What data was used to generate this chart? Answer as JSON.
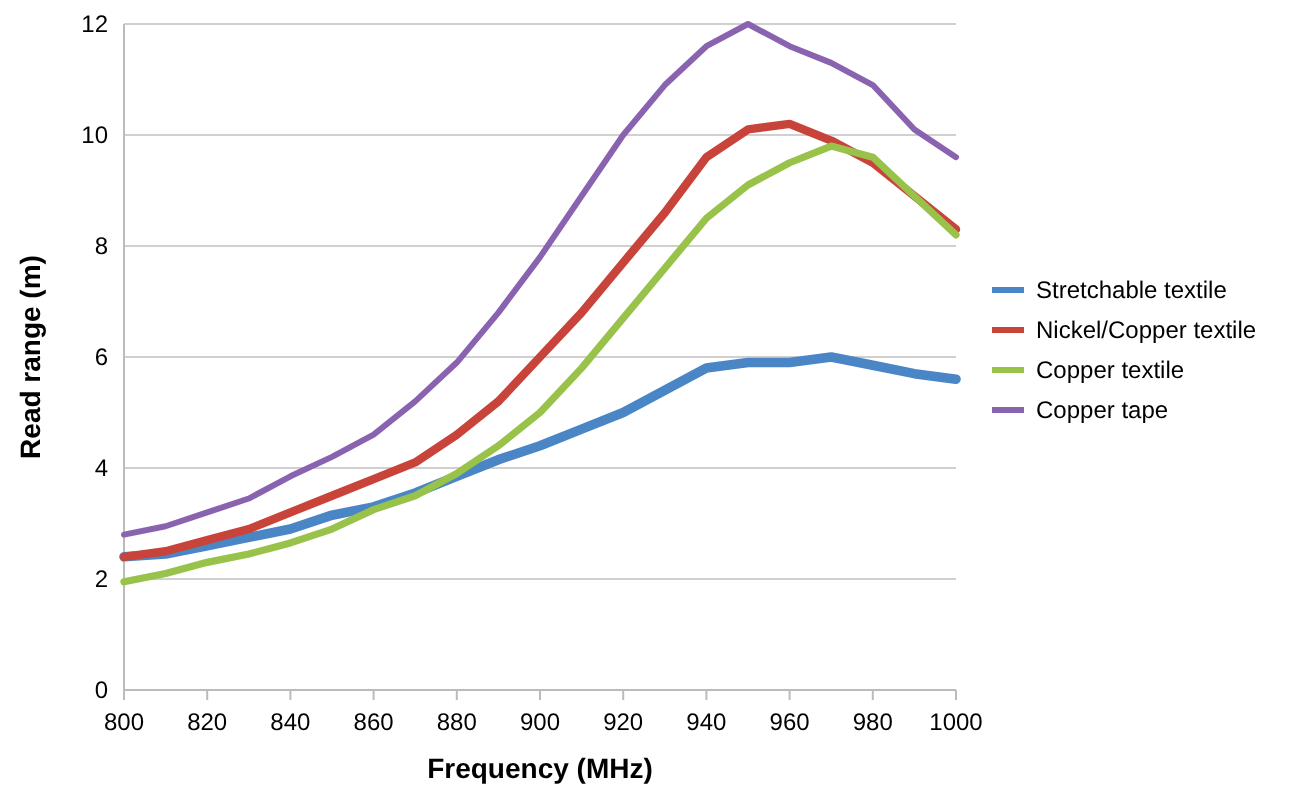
{
  "chart_data": {
    "type": "line",
    "xlabel": "Frequency (MHz)",
    "ylabel": "Read range (m)",
    "x": [
      800,
      810,
      820,
      830,
      840,
      850,
      860,
      870,
      880,
      890,
      900,
      910,
      920,
      930,
      940,
      950,
      960,
      970,
      980,
      990,
      1000
    ],
    "series": [
      {
        "name": "Stretchable textile",
        "color": "#4a86c5",
        "values": [
          2.4,
          2.45,
          2.6,
          2.75,
          2.9,
          3.15,
          3.3,
          3.55,
          3.85,
          4.15,
          4.4,
          4.7,
          5.0,
          5.4,
          5.8,
          5.9,
          5.9,
          6.0,
          5.85,
          5.7,
          5.6
        ]
      },
      {
        "name": "Nickel/Copper textile",
        "color": "#c8443a",
        "values": [
          2.4,
          2.5,
          2.7,
          2.9,
          3.2,
          3.5,
          3.8,
          4.1,
          4.6,
          5.2,
          6.0,
          6.8,
          7.7,
          8.6,
          9.6,
          10.1,
          10.2,
          9.9,
          9.5,
          8.9,
          8.3
        ]
      },
      {
        "name": "Copper textile",
        "color": "#98c24a",
        "values": [
          1.95,
          2.1,
          2.3,
          2.45,
          2.65,
          2.9,
          3.25,
          3.5,
          3.9,
          4.4,
          5.0,
          5.8,
          6.7,
          7.6,
          8.5,
          9.1,
          9.5,
          9.8,
          9.6,
          8.9,
          8.2
        ]
      },
      {
        "name": "Copper tape",
        "color": "#8a63b0",
        "values": [
          2.8,
          2.95,
          3.2,
          3.45,
          3.85,
          4.2,
          4.6,
          5.2,
          5.9,
          6.8,
          7.8,
          8.9,
          10.0,
          10.9,
          11.6,
          12.0,
          11.6,
          11.3,
          10.9,
          10.1,
          9.6
        ]
      }
    ],
    "xlim": [
      800,
      1000
    ],
    "xticks": [
      800,
      820,
      840,
      860,
      880,
      900,
      920,
      940,
      960,
      980,
      1000
    ],
    "ylim": [
      0,
      12
    ],
    "yticks": [
      0,
      2,
      4,
      6,
      8,
      10,
      12
    ],
    "grid": "y",
    "legend": "right",
    "marker": "none",
    "line_style": "solid"
  }
}
